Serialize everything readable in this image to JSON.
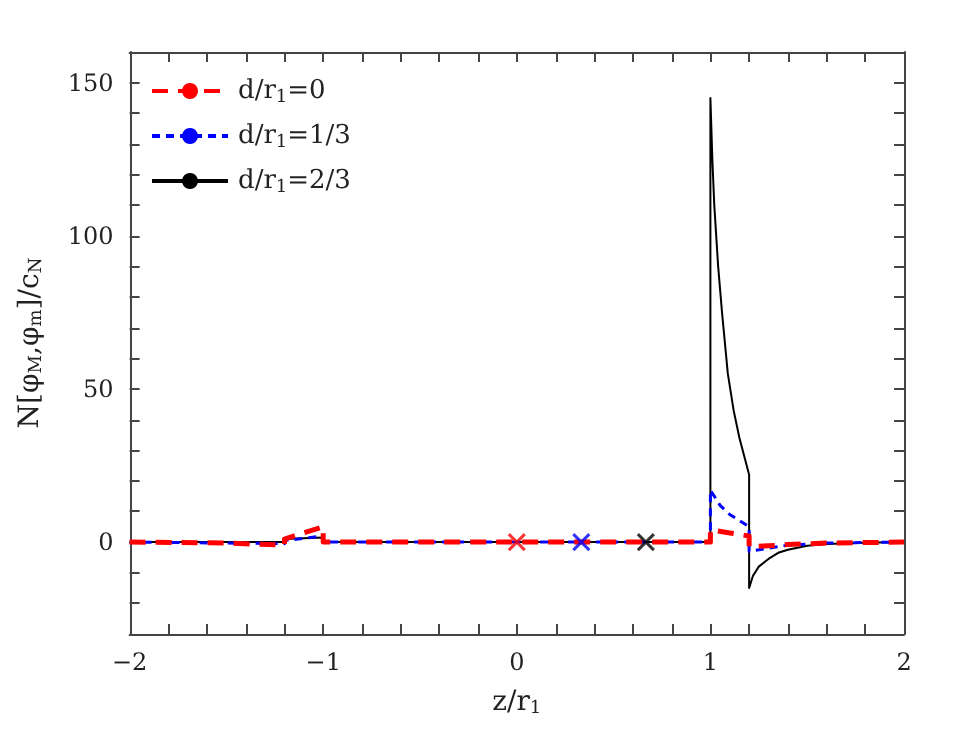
{
  "chart_data": {
    "type": "line",
    "xlabel": "z/r$_{1}$",
    "ylabel": "N[φ$_{M}$,φ$_{m}$]/c$_{N}$",
    "xlim": [
      -2,
      2
    ],
    "ylim": [
      -30,
      160
    ],
    "xticks": [
      -2,
      {
        "value": -1.8,
        "label": null
      },
      {
        "value": -1.6,
        "label": null
      },
      {
        "value": -1.4,
        "label": null
      },
      {
        "value": -1.2,
        "label": null
      },
      -1,
      {
        "value": -0.8,
        "label": null
      },
      {
        "value": -0.6,
        "label": null
      },
      {
        "value": -0.4,
        "label": null
      },
      {
        "value": -0.2,
        "label": null
      },
      0,
      {
        "value": 0.2,
        "label": null
      },
      {
        "value": 0.4,
        "label": null
      },
      {
        "value": 0.6,
        "label": null
      },
      {
        "value": 0.8,
        "label": null
      },
      1,
      {
        "value": 1.2,
        "label": null
      },
      {
        "value": 1.4,
        "label": null
      },
      {
        "value": 1.6,
        "label": null
      },
      {
        "value": 1.8,
        "label": null
      },
      2
    ],
    "yticks": [
      {
        "value": -30,
        "label": null
      },
      {
        "value": -20,
        "label": null
      },
      {
        "value": -10,
        "label": null
      },
      0,
      {
        "value": 10,
        "label": null
      },
      {
        "value": 20,
        "label": null
      },
      {
        "value": 30,
        "label": null
      },
      {
        "value": 40,
        "label": null
      },
      50,
      {
        "value": 60,
        "label": null
      },
      {
        "value": 70,
        "label": null
      },
      {
        "value": 80,
        "label": null
      },
      {
        "value": 90,
        "label": null
      },
      100,
      {
        "value": 110,
        "label": null
      },
      {
        "value": 120,
        "label": null
      },
      {
        "value": 130,
        "label": null
      },
      {
        "value": 140,
        "label": null
      },
      150,
      {
        "value": 160,
        "label": null
      }
    ],
    "grid": false,
    "legend": "top left",
    "series": [
      {
        "name": "d/r$_{1}$=0",
        "color": "#ff0000",
        "line_style": "dashed",
        "x": [
          -2,
          -1.5,
          -1.2,
          -1.2,
          -1,
          -1,
          0,
          1,
          1,
          1.1,
          1.2,
          1.2,
          1.3,
          1.4,
          1.6,
          2
        ],
        "values": [
          0,
          -0.3,
          -1,
          1,
          5,
          0,
          0,
          0,
          4,
          3,
          2,
          -1.5,
          -1.2,
          -0.8,
          -0.3,
          0
        ]
      },
      {
        "name": "d/r$_{1}$=1/3",
        "color": "#0000ff",
        "line_style": "dotted",
        "x": [
          -2,
          -1.2,
          -1.2,
          -1,
          -1,
          1,
          1,
          1.05,
          1.1,
          1.2,
          1.2,
          1.3,
          1.4,
          1.6,
          2
        ],
        "values": [
          0,
          -0.5,
          0.5,
          2,
          0,
          0,
          17,
          12,
          9,
          5,
          -3,
          -2,
          -1,
          -0.3,
          0
        ]
      },
      {
        "name": "d/r$_{1}$=2/3",
        "color": "#000000",
        "line_style": "solid",
        "x": [
          -2,
          -1.2,
          -1.2,
          -1,
          -1,
          1,
          1,
          1.01,
          1.02,
          1.04,
          1.06,
          1.09,
          1.12,
          1.15,
          1.2,
          1.2,
          1.22,
          1.25,
          1.3,
          1.35,
          1.4,
          1.5,
          1.6,
          1.8,
          2
        ],
        "values": [
          0,
          0,
          1,
          1.5,
          0,
          0,
          145,
          125,
          110,
          90,
          75,
          55,
          43,
          34,
          22,
          -15,
          -11,
          -8,
          -5.5,
          -3.5,
          -2.5,
          -1.2,
          -0.6,
          -0.2,
          0
        ]
      },
      {
        "type": "scatter",
        "marker": "cross",
        "color": "#ff0000",
        "x": [
          0
        ],
        "values": [
          0
        ]
      },
      {
        "type": "scatter",
        "marker": "cross",
        "color": "#0000ff",
        "x": [
          0.3333
        ],
        "values": [
          0
        ]
      },
      {
        "type": "scatter",
        "marker": "cross",
        "color": "#000000",
        "x": [
          0.6667
        ],
        "values": [
          0
        ]
      }
    ]
  }
}
